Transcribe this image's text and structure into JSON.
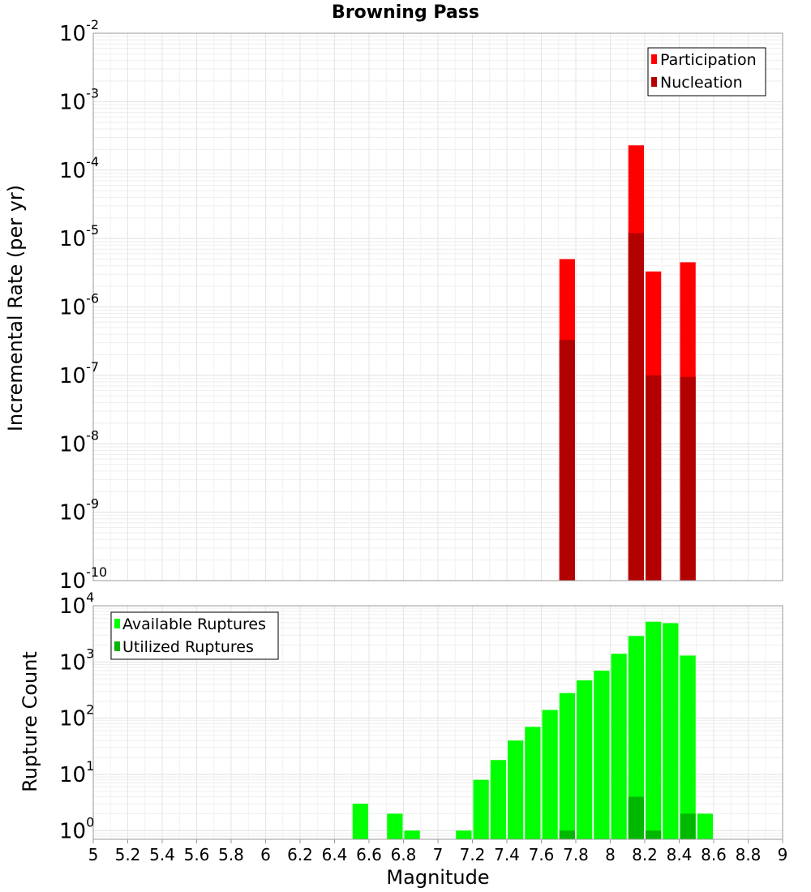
{
  "chart_data": [
    {
      "type": "bar",
      "title": "Browning Pass",
      "xlabel": "",
      "ylabel": "Incremental Rate (per yr)",
      "yscale": "log",
      "ylim_exponents": [
        -10,
        -2
      ],
      "y_tick_exponents": [
        -10,
        -9,
        -8,
        -7,
        -6,
        -5,
        -4,
        -3,
        -2
      ],
      "xlim": [
        5,
        9
      ],
      "bar_width": 0.1,
      "legend_position": "top-right",
      "series": [
        {
          "name": "Participation",
          "color": "#ff0000",
          "x": [
            7.75,
            8.15,
            8.25,
            8.45
          ],
          "values": [
            5e-06,
            0.00023,
            3.3e-06,
            4.5e-06
          ]
        },
        {
          "name": "Nucleation",
          "color": "#b30000",
          "x": [
            7.75,
            8.15,
            8.25,
            8.45
          ],
          "values": [
            3.3e-07,
            1.2e-05,
            1e-07,
            9.5e-08
          ]
        }
      ]
    },
    {
      "type": "bar",
      "title": "",
      "xlabel": "Magnitude",
      "ylabel": "Rupture Count",
      "yscale": "log",
      "ylim": [
        0.7,
        10000
      ],
      "y_tick_exponents": [
        0,
        1,
        2,
        3,
        4
      ],
      "xlim": [
        5,
        9
      ],
      "x_ticks": [
        "5",
        "5.2",
        "5.4",
        "5.6",
        "5.8",
        "6",
        "6.2",
        "6.4",
        "6.6",
        "6.8",
        "7",
        "7.2",
        "7.4",
        "7.6",
        "7.8",
        "8",
        "8.2",
        "8.4",
        "8.6",
        "8.8",
        "9"
      ],
      "bar_width": 0.1,
      "legend_position": "top-left",
      "series": [
        {
          "name": "Available Ruptures",
          "color": "#00ff00",
          "x": [
            6.55,
            6.75,
            6.85,
            7.15,
            7.25,
            7.35,
            7.45,
            7.55,
            7.65,
            7.75,
            7.85,
            7.95,
            8.05,
            8.15,
            8.25,
            8.35,
            8.45,
            8.55
          ],
          "values": [
            3,
            2,
            1,
            1,
            8,
            18,
            40,
            70,
            140,
            280,
            470,
            700,
            1400,
            2900,
            5200,
            4900,
            1300,
            2
          ]
        },
        {
          "name": "Utilized Ruptures",
          "color": "#00b800",
          "x": [
            7.75,
            8.15,
            8.25,
            8.45
          ],
          "values": [
            1,
            4,
            1,
            2
          ]
        }
      ]
    }
  ]
}
